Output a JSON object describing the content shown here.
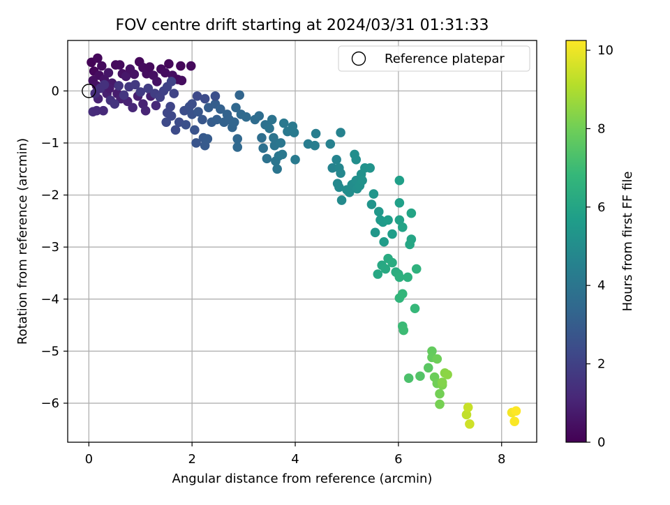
{
  "chart_data": {
    "type": "scatter",
    "title": "FOV centre drift starting at 2024/03/31 01:31:33",
    "xlabel": "Angular distance from reference (arcmin)",
    "ylabel": "Rotation from reference (arcmin)",
    "xlim": [
      -0.41,
      8.68
    ],
    "ylim": [
      -6.75,
      0.97
    ],
    "xticks": [
      0,
      2,
      4,
      6,
      8
    ],
    "xtick_labels": [
      "0",
      "2",
      "4",
      "6",
      "8"
    ],
    "yticks": [
      0,
      -1,
      -2,
      -3,
      -4,
      -5,
      -6
    ],
    "ytick_labels": [
      "0",
      "−1",
      "−2",
      "−3",
      "−4",
      "−5",
      "−6"
    ],
    "grid": true,
    "legend": {
      "position": "top-right",
      "entries": [
        {
          "label": "Reference platepar",
          "marker": "open-circle"
        }
      ]
    },
    "reference_point": {
      "x": 0,
      "y": 0
    },
    "colorbar": {
      "label": "Hours from first FF file",
      "colormap": "viridis",
      "range": [
        0,
        10.25
      ],
      "ticks": [
        0,
        2,
        4,
        6,
        8,
        10
      ],
      "tick_labels": [
        "0",
        "2",
        "4",
        "6",
        "8",
        "10"
      ],
      "colors": [
        "#440154",
        "#482878",
        "#3e4989",
        "#31688e",
        "#26828e",
        "#1f9e89",
        "#35b779",
        "#6ece58",
        "#b5de2b",
        "#fde725"
      ]
    },
    "points": [
      {
        "x": 0.05,
        "y": 0.55,
        "t": 0.1
      },
      {
        "x": 0.17,
        "y": 0.63,
        "t": 0.2
      },
      {
        "x": 0.25,
        "y": 0.48,
        "t": 0.3
      },
      {
        "x": 0.1,
        "y": 0.38,
        "t": 0.15
      },
      {
        "x": 0.2,
        "y": 0.3,
        "t": 0.35
      },
      {
        "x": 0.08,
        "y": 0.2,
        "t": 0.4
      },
      {
        "x": 0.15,
        "y": 0.1,
        "t": 0.5
      },
      {
        "x": 0.3,
        "y": 0.22,
        "t": 0.55
      },
      {
        "x": 0.38,
        "y": 0.35,
        "t": 0.6
      },
      {
        "x": 0.45,
        "y": 0.15,
        "t": 0.7
      },
      {
        "x": 0.52,
        "y": 0.5,
        "t": 0.25
      },
      {
        "x": 0.6,
        "y": 0.5,
        "t": 0.3
      },
      {
        "x": 0.65,
        "y": 0.33,
        "t": 0.45
      },
      {
        "x": 0.72,
        "y": 0.28,
        "t": 0.65
      },
      {
        "x": 0.8,
        "y": 0.42,
        "t": 0.5
      },
      {
        "x": 0.88,
        "y": 0.32,
        "t": 0.55
      },
      {
        "x": 0.98,
        "y": 0.56,
        "t": 0.2
      },
      {
        "x": 1.05,
        "y": 0.45,
        "t": 0.3
      },
      {
        "x": 1.12,
        "y": 0.33,
        "t": 0.35
      },
      {
        "x": 1.18,
        "y": 0.46,
        "t": 0.25
      },
      {
        "x": 1.25,
        "y": 0.3,
        "t": 0.4
      },
      {
        "x": 1.32,
        "y": 0.18,
        "t": 0.5
      },
      {
        "x": 1.4,
        "y": 0.42,
        "t": 0.3
      },
      {
        "x": 1.48,
        "y": 0.35,
        "t": 0.35
      },
      {
        "x": 1.55,
        "y": 0.52,
        "t": 0.2
      },
      {
        "x": 1.62,
        "y": 0.3,
        "t": 0.4
      },
      {
        "x": 1.72,
        "y": 0.22,
        "t": 0.3
      },
      {
        "x": 1.8,
        "y": 0.2,
        "t": 0.35
      },
      {
        "x": 1.78,
        "y": 0.48,
        "t": 0.2
      },
      {
        "x": 1.98,
        "y": 0.48,
        "t": 0.25
      },
      {
        "x": 0.55,
        "y": -0.05,
        "t": 0.8
      },
      {
        "x": 0.62,
        "y": -0.15,
        "t": 0.9
      },
      {
        "x": 0.75,
        "y": -0.2,
        "t": 1.0
      },
      {
        "x": 0.85,
        "y": -0.32,
        "t": 1.1
      },
      {
        "x": 0.95,
        "y": -0.1,
        "t": 0.85
      },
      {
        "x": 1.05,
        "y": -0.25,
        "t": 0.95
      },
      {
        "x": 1.1,
        "y": -0.38,
        "t": 1.05
      },
      {
        "x": 1.2,
        "y": -0.1,
        "t": 0.9
      },
      {
        "x": 1.3,
        "y": -0.28,
        "t": 1.2
      },
      {
        "x": 0.08,
        "y": -0.4,
        "t": 1.3
      },
      {
        "x": 0.15,
        "y": -0.38,
        "t": 1.25
      },
      {
        "x": 0.28,
        "y": -0.38,
        "t": 1.2
      },
      {
        "x": 0.18,
        "y": -0.15,
        "t": 1.0
      },
      {
        "x": 0.35,
        "y": -0.05,
        "t": 0.9
      },
      {
        "x": 0.4,
        "y": 0.05,
        "t": 0.75
      },
      {
        "x": 0.12,
        "y": -0.05,
        "t": 1.35
      },
      {
        "x": 0.22,
        "y": 0.05,
        "t": 1.4
      },
      {
        "x": 0.3,
        "y": 0.12,
        "t": 1.45
      },
      {
        "x": 0.42,
        "y": -0.18,
        "t": 1.5
      },
      {
        "x": 0.5,
        "y": -0.25,
        "t": 1.55
      },
      {
        "x": 0.58,
        "y": 0.1,
        "t": 1.6
      },
      {
        "x": 0.68,
        "y": -0.08,
        "t": 1.65
      },
      {
        "x": 0.78,
        "y": 0.08,
        "t": 1.7
      },
      {
        "x": 0.9,
        "y": 0.12,
        "t": 1.75
      },
      {
        "x": 1.0,
        "y": -0.02,
        "t": 1.8
      },
      {
        "x": 1.15,
        "y": 0.05,
        "t": 1.85
      },
      {
        "x": 1.28,
        "y": -0.05,
        "t": 1.9
      },
      {
        "x": 1.38,
        "y": -0.12,
        "t": 1.95
      },
      {
        "x": 1.45,
        "y": 0.0,
        "t": 2.0
      },
      {
        "x": 1.52,
        "y": 0.08,
        "t": 2.05
      },
      {
        "x": 1.6,
        "y": 0.18,
        "t": 2.1
      },
      {
        "x": 1.65,
        "y": -0.05,
        "t": 2.1
      },
      {
        "x": 1.58,
        "y": -0.3,
        "t": 2.15
      },
      {
        "x": 1.52,
        "y": -0.42,
        "t": 2.2
      },
      {
        "x": 1.6,
        "y": -0.48,
        "t": 2.25
      },
      {
        "x": 1.5,
        "y": -0.6,
        "t": 2.3
      },
      {
        "x": 1.68,
        "y": -0.75,
        "t": 2.35
      },
      {
        "x": 1.75,
        "y": -0.6,
        "t": 2.4
      },
      {
        "x": 1.85,
        "y": -0.38,
        "t": 2.45
      },
      {
        "x": 1.88,
        "y": -0.65,
        "t": 2.5
      },
      {
        "x": 1.95,
        "y": -0.3,
        "t": 2.55
      },
      {
        "x": 2.0,
        "y": -0.45,
        "t": 2.6
      },
      {
        "x": 2.05,
        "y": -0.75,
        "t": 2.65
      },
      {
        "x": 2.08,
        "y": -1.0,
        "t": 2.7
      },
      {
        "x": 2.12,
        "y": -0.4,
        "t": 2.75
      },
      {
        "x": 2.2,
        "y": -0.55,
        "t": 2.8
      },
      {
        "x": 2.22,
        "y": -0.9,
        "t": 2.85
      },
      {
        "x": 2.25,
        "y": -1.05,
        "t": 2.9
      },
      {
        "x": 2.3,
        "y": -0.92,
        "t": 2.95
      },
      {
        "x": 2.32,
        "y": -0.32,
        "t": 3.0
      },
      {
        "x": 2.38,
        "y": -0.6,
        "t": 3.0
      },
      {
        "x": 2.45,
        "y": -0.25,
        "t": 3.05
      },
      {
        "x": 2.48,
        "y": -0.55,
        "t": 3.1
      },
      {
        "x": 2.55,
        "y": -0.35,
        "t": 3.15
      },
      {
        "x": 2.62,
        "y": -0.6,
        "t": 3.2
      },
      {
        "x": 2.68,
        "y": -0.45,
        "t": 3.25
      },
      {
        "x": 2.72,
        "y": -0.55,
        "t": 3.25
      },
      {
        "x": 2.78,
        "y": -0.7,
        "t": 3.3
      },
      {
        "x": 2.82,
        "y": -0.6,
        "t": 3.35
      },
      {
        "x": 2.88,
        "y": -0.92,
        "t": 3.4
      },
      {
        "x": 2.88,
        "y": -1.08,
        "t": 3.45
      },
      {
        "x": 2.92,
        "y": -0.08,
        "t": 3.3
      },
      {
        "x": 2.95,
        "y": -0.45,
        "t": 3.5
      },
      {
        "x": 2.85,
        "y": -0.32,
        "t": 3.4
      },
      {
        "x": 3.05,
        "y": -0.5,
        "t": 3.55
      },
      {
        "x": 2.1,
        "y": -0.1,
        "t": 2.3
      },
      {
        "x": 2.25,
        "y": -0.15,
        "t": 2.4
      },
      {
        "x": 2.45,
        "y": -0.1,
        "t": 2.5
      },
      {
        "x": 2.0,
        "y": -0.25,
        "t": 2.45
      },
      {
        "x": 3.22,
        "y": -0.55,
        "t": 3.6
      },
      {
        "x": 3.3,
        "y": -0.48,
        "t": 3.65
      },
      {
        "x": 3.35,
        "y": -0.9,
        "t": 3.7
      },
      {
        "x": 3.38,
        "y": -1.1,
        "t": 3.75
      },
      {
        "x": 3.42,
        "y": -0.65,
        "t": 3.8
      },
      {
        "x": 3.45,
        "y": -1.3,
        "t": 3.85
      },
      {
        "x": 3.5,
        "y": -0.72,
        "t": 3.9
      },
      {
        "x": 3.55,
        "y": -0.55,
        "t": 3.9
      },
      {
        "x": 3.58,
        "y": -0.9,
        "t": 3.95
      },
      {
        "x": 3.6,
        "y": -1.05,
        "t": 3.95
      },
      {
        "x": 3.62,
        "y": -1.35,
        "t": 4.0
      },
      {
        "x": 3.65,
        "y": -1.5,
        "t": 4.0
      },
      {
        "x": 3.68,
        "y": -1.25,
        "t": 4.05
      },
      {
        "x": 3.72,
        "y": -1.0,
        "t": 4.05
      },
      {
        "x": 3.75,
        "y": -1.22,
        "t": 4.1
      },
      {
        "x": 3.78,
        "y": -0.62,
        "t": 4.1
      },
      {
        "x": 3.85,
        "y": -0.78,
        "t": 4.15
      },
      {
        "x": 3.95,
        "y": -0.68,
        "t": 4.15
      },
      {
        "x": 3.98,
        "y": -0.8,
        "t": 4.2
      },
      {
        "x": 4.0,
        "y": -1.32,
        "t": 4.2
      },
      {
        "x": 4.25,
        "y": -1.02,
        "t": 4.3
      },
      {
        "x": 4.38,
        "y": -1.05,
        "t": 4.35
      },
      {
        "x": 4.4,
        "y": -0.82,
        "t": 4.35
      },
      {
        "x": 4.68,
        "y": -1.02,
        "t": 4.5
      },
      {
        "x": 4.88,
        "y": -0.8,
        "t": 4.55
      },
      {
        "x": 4.72,
        "y": -1.48,
        "t": 4.6
      },
      {
        "x": 4.8,
        "y": -1.32,
        "t": 4.65
      },
      {
        "x": 4.85,
        "y": -1.48,
        "t": 4.7
      },
      {
        "x": 4.88,
        "y": -1.58,
        "t": 4.75
      },
      {
        "x": 4.82,
        "y": -1.78,
        "t": 4.8
      },
      {
        "x": 4.85,
        "y": -1.85,
        "t": 4.85
      },
      {
        "x": 4.9,
        "y": -2.1,
        "t": 4.9
      },
      {
        "x": 5.0,
        "y": -1.9,
        "t": 4.95
      },
      {
        "x": 5.05,
        "y": -1.95,
        "t": 5.0
      },
      {
        "x": 5.1,
        "y": -1.8,
        "t": 5.0
      },
      {
        "x": 5.15,
        "y": -1.22,
        "t": 5.05
      },
      {
        "x": 5.18,
        "y": -1.32,
        "t": 5.05
      },
      {
        "x": 5.18,
        "y": -1.72,
        "t": 5.1
      },
      {
        "x": 5.2,
        "y": -1.88,
        "t": 5.1
      },
      {
        "x": 5.25,
        "y": -1.82,
        "t": 5.15
      },
      {
        "x": 5.28,
        "y": -1.6,
        "t": 5.15
      },
      {
        "x": 5.3,
        "y": -1.72,
        "t": 5.2
      },
      {
        "x": 5.35,
        "y": -1.48,
        "t": 5.2
      },
      {
        "x": 5.45,
        "y": -1.48,
        "t": 5.25
      },
      {
        "x": 5.48,
        "y": -2.18,
        "t": 5.3
      },
      {
        "x": 5.52,
        "y": -1.98,
        "t": 5.35
      },
      {
        "x": 5.55,
        "y": -2.72,
        "t": 5.4
      },
      {
        "x": 5.62,
        "y": -2.32,
        "t": 5.45
      },
      {
        "x": 5.65,
        "y": -2.48,
        "t": 5.5
      },
      {
        "x": 5.7,
        "y": -2.52,
        "t": 5.55
      },
      {
        "x": 5.72,
        "y": -2.9,
        "t": 5.6
      },
      {
        "x": 5.8,
        "y": -2.48,
        "t": 5.65
      },
      {
        "x": 5.88,
        "y": -2.75,
        "t": 5.7
      },
      {
        "x": 6.02,
        "y": -1.72,
        "t": 5.75
      },
      {
        "x": 6.02,
        "y": -2.15,
        "t": 5.8
      },
      {
        "x": 6.02,
        "y": -2.48,
        "t": 5.85
      },
      {
        "x": 6.08,
        "y": -2.62,
        "t": 5.9
      },
      {
        "x": 6.25,
        "y": -2.35,
        "t": 5.95
      },
      {
        "x": 6.25,
        "y": -2.85,
        "t": 6.0
      },
      {
        "x": 6.22,
        "y": -2.95,
        "t": 6.05
      },
      {
        "x": 5.6,
        "y": -3.52,
        "t": 6.1
      },
      {
        "x": 5.68,
        "y": -3.35,
        "t": 6.15
      },
      {
        "x": 5.75,
        "y": -3.42,
        "t": 6.2
      },
      {
        "x": 5.8,
        "y": -3.22,
        "t": 6.25
      },
      {
        "x": 5.88,
        "y": -3.3,
        "t": 6.3
      },
      {
        "x": 5.95,
        "y": -3.48,
        "t": 6.35
      },
      {
        "x": 6.0,
        "y": -3.52,
        "t": 6.4
      },
      {
        "x": 6.02,
        "y": -3.58,
        "t": 6.45
      },
      {
        "x": 6.18,
        "y": -3.58,
        "t": 6.5
      },
      {
        "x": 6.35,
        "y": -3.42,
        "t": 6.55
      },
      {
        "x": 6.02,
        "y": -3.98,
        "t": 6.7
      },
      {
        "x": 6.08,
        "y": -3.9,
        "t": 6.75
      },
      {
        "x": 6.32,
        "y": -4.18,
        "t": 6.85
      },
      {
        "x": 6.08,
        "y": -4.52,
        "t": 6.95
      },
      {
        "x": 6.1,
        "y": -4.6,
        "t": 7.0
      },
      {
        "x": 6.2,
        "y": -5.52,
        "t": 7.3
      },
      {
        "x": 6.42,
        "y": -5.48,
        "t": 7.45
      },
      {
        "x": 6.58,
        "y": -5.32,
        "t": 7.6
      },
      {
        "x": 6.65,
        "y": -5.0,
        "t": 7.75
      },
      {
        "x": 6.65,
        "y": -5.12,
        "t": 7.8
      },
      {
        "x": 6.7,
        "y": -5.5,
        "t": 7.9
      },
      {
        "x": 6.75,
        "y": -5.15,
        "t": 7.95
      },
      {
        "x": 6.75,
        "y": -5.62,
        "t": 8.0
      },
      {
        "x": 6.8,
        "y": -5.82,
        "t": 8.05
      },
      {
        "x": 6.8,
        "y": -6.02,
        "t": 8.1
      },
      {
        "x": 6.85,
        "y": -5.65,
        "t": 8.2
      },
      {
        "x": 6.85,
        "y": -5.6,
        "t": 8.3
      },
      {
        "x": 6.9,
        "y": -5.42,
        "t": 8.4
      },
      {
        "x": 6.95,
        "y": -5.45,
        "t": 8.45
      },
      {
        "x": 7.32,
        "y": -6.22,
        "t": 9.3
      },
      {
        "x": 7.35,
        "y": -6.08,
        "t": 9.4
      },
      {
        "x": 7.38,
        "y": -6.4,
        "t": 9.5
      },
      {
        "x": 8.2,
        "y": -6.18,
        "t": 10.1
      },
      {
        "x": 8.25,
        "y": -6.35,
        "t": 10.2
      },
      {
        "x": 8.28,
        "y": -6.15,
        "t": 10.25
      }
    ]
  }
}
